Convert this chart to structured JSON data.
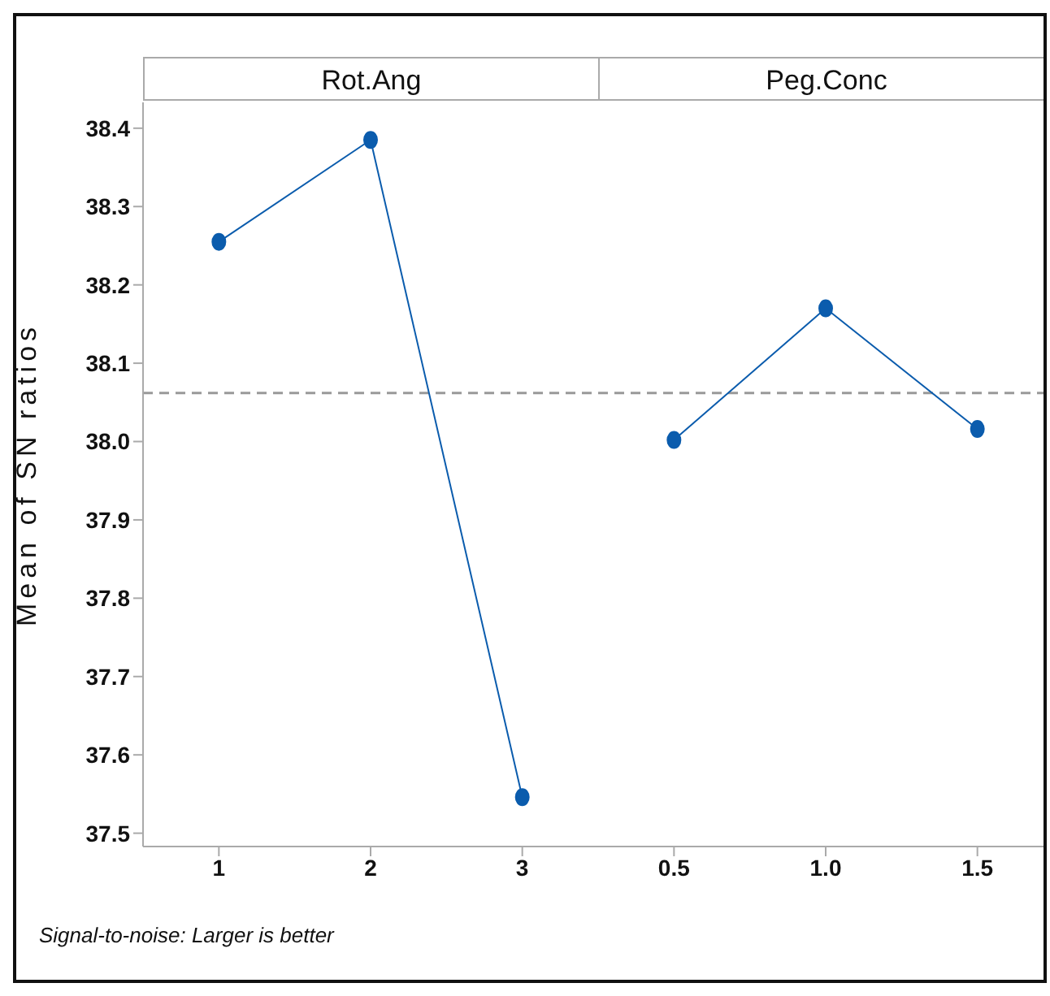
{
  "chart_data": [
    {
      "type": "line",
      "title": "Rot.Ang",
      "ylabel": "Mean of SN ratios",
      "categories": [
        "1",
        "2",
        "3"
      ],
      "marker": "circle",
      "line_style": "solid",
      "series": [
        {
          "color": "#0b5cad",
          "values": [
            38.255,
            38.385,
            37.546
          ]
        }
      ],
      "ylim": [
        37.483,
        38.433
      ],
      "yticks": [
        37.5,
        37.6,
        37.7,
        37.8,
        37.9,
        {
          "value": 38,
          "label": "38.0"
        },
        38.1,
        38.2,
        38.3,
        38.4
      ],
      "ref_lines": [
        {
          "axis": "y",
          "value": 38.062,
          "color": "#999999",
          "line_style": "dashed"
        }
      ],
      "annotations": [
        "Signal-to-noise: Larger is better"
      ]
    },
    {
      "type": "line",
      "title": "Peg.Conc",
      "categories": [
        "0.5",
        "1.0",
        "1.5"
      ],
      "marker": "circle",
      "line_style": "solid",
      "series": [
        {
          "color": "#0b5cad",
          "values": [
            38.002,
            38.17,
            38.016
          ]
        }
      ],
      "ylim": [
        37.483,
        38.433
      ],
      "yticks": [
        37.5,
        37.6,
        37.7,
        37.8,
        37.9,
        38,
        38.1,
        38.2,
        38.3,
        38.4
      ],
      "tick_labels": "x",
      "ref_lines": [
        {
          "axis": "y",
          "value": 38.062,
          "color": "#999999",
          "line_style": "dashed"
        }
      ]
    }
  ]
}
